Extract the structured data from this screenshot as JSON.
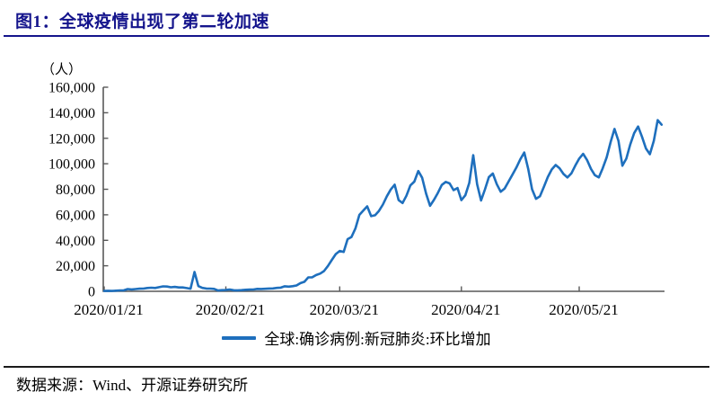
{
  "page": {
    "title": "图1：全球疫情出现了第二轮加速",
    "source_note": "数据来源：Wind、开源证券研究所"
  },
  "colors": {
    "title_navy": "#14148c",
    "line_blue": "#1e6fbd",
    "axis_gray": "#595959",
    "footer_rule": "#1a1a1a"
  },
  "chart_data": {
    "type": "line",
    "title": "图1：全球疫情出现了第二轮加速",
    "unit_label": "（人）",
    "legend": [
      "全球:确诊病例:新冠肺炎:环比增加"
    ],
    "legend_position": "bottom-center",
    "grid": false,
    "ylim": [
      0,
      160000
    ],
    "y_tick_step": 20000,
    "y_ticks": [
      "0",
      "20,000",
      "40,000",
      "60,000",
      "80,000",
      "100,000",
      "120,000",
      "140,000",
      "160,000"
    ],
    "x_start_date": "2020/01/21",
    "x_end_date": "2020/06/11",
    "x_frequency": "daily",
    "x_ticks": [
      {
        "label": "2020/01/21",
        "day": 0
      },
      {
        "label": "2020/02/21",
        "day": 31
      },
      {
        "label": "2020/03/21",
        "day": 60
      },
      {
        "label": "2020/04/21",
        "day": 91
      },
      {
        "label": "2020/05/21",
        "day": 121
      }
    ],
    "line_color": "#1e6fbd",
    "values": [
      300,
      450,
      270,
      470,
      700,
      790,
      1780,
      1480,
      1760,
      2010,
      2130,
      2600,
      2840,
      2580,
      3240,
      3900,
      3730,
      3200,
      3440,
      3000,
      3050,
      2560,
      2070,
      15150,
      4080,
      2650,
      2200,
      2130,
      1900,
      600,
      900,
      1050,
      1400,
      830,
      750,
      950,
      1180,
      1370,
      1440,
      1870,
      1850,
      1950,
      2160,
      2250,
      2700,
      2900,
      3920,
      3680,
      4000,
      4580,
      6400,
      7500,
      10950,
      10980,
      12780,
      13900,
      15850,
      19900,
      24650,
      29150,
      31650,
      30850,
      40850,
      42600,
      49300,
      59900,
      63300,
      66600,
      58900,
      59600,
      63000,
      68000,
      74500,
      79800,
      83600,
      71500,
      69200,
      74900,
      83000,
      86000,
      94300,
      89000,
      76600,
      67000,
      71600,
      77100,
      83400,
      85800,
      84600,
      79300,
      81000,
      71500,
      75300,
      85000,
      106700,
      84000,
      71200,
      80000,
      89500,
      92300,
      84000,
      78000,
      80500,
      86000,
      91500,
      97000,
      103500,
      108800,
      96000,
      80000,
      72500,
      74500,
      82000,
      89500,
      95500,
      99000,
      96500,
      92000,
      89200,
      92500,
      98500,
      104000,
      107800,
      103000,
      96000,
      91000,
      89300,
      96500,
      105000,
      117000,
      127300,
      118000,
      98500,
      104000,
      115000,
      124000,
      129200,
      121000,
      112000,
      107500,
      118000,
      134200,
      130600
    ]
  }
}
